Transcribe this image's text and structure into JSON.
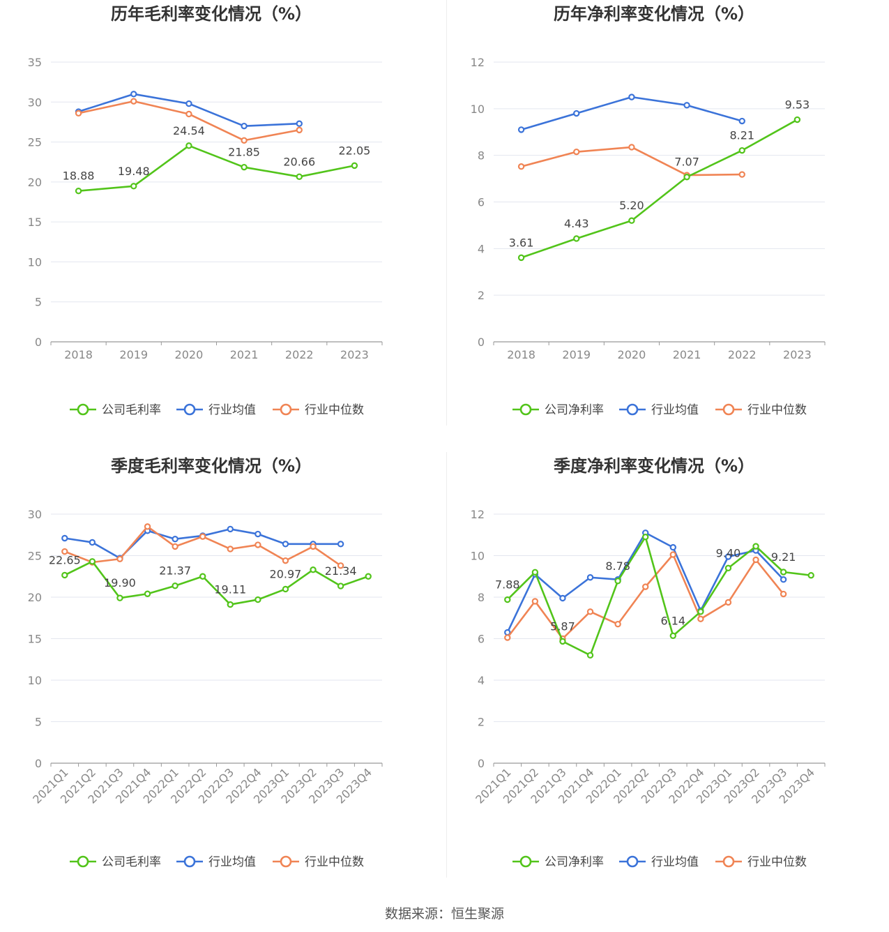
{
  "colors": {
    "company": "#52c41a",
    "avg": "#3b73d9",
    "median": "#f08454",
    "grid": "#e3e6ef",
    "axis": "#999999"
  },
  "source": "数据来源：恒生聚源",
  "chart_data": [
    {
      "type": "line",
      "title": "历年毛利率变化情况（%）",
      "categories": [
        "2018",
        "2019",
        "2020",
        "2021",
        "2022",
        "2023"
      ],
      "ylim": [
        0,
        35
      ],
      "yticks": [
        0,
        5,
        10,
        15,
        20,
        25,
        30,
        35
      ],
      "grid": true,
      "legend_position": "bottom",
      "series": [
        {
          "name": "公司毛利率",
          "values": [
            18.88,
            19.48,
            24.54,
            21.85,
            20.66,
            22.05
          ],
          "labels": [
            "18.88",
            "19.48",
            "24.54",
            "21.85",
            "20.66",
            "22.05"
          ]
        },
        {
          "name": "行业均值",
          "values": [
            28.8,
            31.0,
            29.8,
            27.0,
            27.3,
            null
          ]
        },
        {
          "name": "行业中位数",
          "values": [
            28.6,
            30.1,
            28.5,
            25.2,
            26.5,
            null
          ]
        }
      ]
    },
    {
      "type": "line",
      "title": "历年净利率变化情况（%）",
      "categories": [
        "2018",
        "2019",
        "2020",
        "2021",
        "2022",
        "2023"
      ],
      "ylim": [
        0,
        12
      ],
      "yticks": [
        0,
        2,
        4,
        6,
        8,
        10,
        12
      ],
      "grid": true,
      "legend_position": "bottom",
      "series": [
        {
          "name": "公司净利率",
          "values": [
            3.61,
            4.43,
            5.2,
            7.07,
            8.21,
            9.53
          ],
          "labels": [
            "3.61",
            "4.43",
            "5.20",
            "7.07",
            "8.21",
            "9.53"
          ]
        },
        {
          "name": "行业均值",
          "values": [
            9.1,
            9.8,
            10.5,
            10.15,
            9.47,
            null
          ]
        },
        {
          "name": "行业中位数",
          "values": [
            7.52,
            8.15,
            8.35,
            7.15,
            7.18,
            null
          ]
        }
      ]
    },
    {
      "type": "line",
      "title": "季度毛利率变化情况（%）",
      "categories": [
        "2021Q1",
        "2021Q2",
        "2021Q3",
        "2021Q4",
        "2022Q1",
        "2022Q2",
        "2022Q3",
        "2022Q4",
        "2023Q1",
        "2023Q2",
        "2023Q3",
        "2023Q4"
      ],
      "ylim": [
        0,
        30
      ],
      "yticks": [
        0,
        5,
        10,
        15,
        20,
        25,
        30
      ],
      "grid": true,
      "legend_position": "bottom",
      "series": [
        {
          "name": "公司毛利率",
          "values": [
            22.65,
            24.3,
            19.9,
            20.4,
            21.37,
            22.5,
            19.11,
            19.7,
            20.97,
            23.3,
            21.34,
            22.5
          ],
          "labels": [
            "22.65",
            "",
            "19.90",
            "",
            "21.37",
            "",
            "19.11",
            "",
            "20.97",
            "",
            "21.34",
            ""
          ]
        },
        {
          "name": "行业均值",
          "values": [
            27.1,
            26.6,
            24.7,
            28.0,
            27.0,
            27.4,
            28.2,
            27.6,
            26.4,
            26.4,
            26.4,
            null
          ]
        },
        {
          "name": "行业中位数",
          "values": [
            25.5,
            24.2,
            24.6,
            28.5,
            26.1,
            27.3,
            25.8,
            26.3,
            24.4,
            26.1,
            23.8,
            null
          ]
        }
      ]
    },
    {
      "type": "line",
      "title": "季度净利率变化情况（%）",
      "categories": [
        "2021Q1",
        "2021Q2",
        "2021Q3",
        "2021Q4",
        "2022Q1",
        "2022Q2",
        "2022Q3",
        "2022Q4",
        "2023Q1",
        "2023Q2",
        "2023Q3",
        "2023Q4"
      ],
      "ylim": [
        0,
        12
      ],
      "yticks": [
        0,
        2,
        4,
        6,
        8,
        10,
        12
      ],
      "grid": true,
      "legend_position": "bottom",
      "series": [
        {
          "name": "公司净利率",
          "values": [
            7.88,
            9.2,
            5.87,
            5.2,
            8.78,
            10.9,
            6.14,
            7.3,
            9.4,
            10.45,
            9.21,
            9.05
          ],
          "labels": [
            "7.88",
            "",
            "5.87",
            "",
            "8.78",
            "",
            "6.14",
            "",
            "9.40",
            "",
            "9.21",
            ""
          ]
        },
        {
          "name": "行业均值",
          "values": [
            6.3,
            9.1,
            7.95,
            8.95,
            8.85,
            11.1,
            10.4,
            7.35,
            9.95,
            10.25,
            8.85,
            null
          ]
        },
        {
          "name": "行业中位数",
          "values": [
            6.05,
            7.8,
            6.0,
            7.3,
            6.7,
            8.5,
            10.05,
            6.95,
            7.75,
            9.8,
            8.15,
            null
          ]
        }
      ]
    }
  ]
}
